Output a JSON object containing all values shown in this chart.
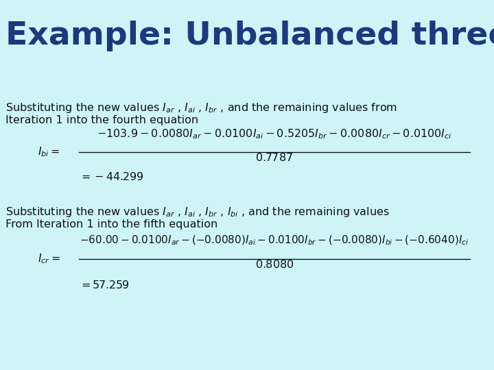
{
  "background_color": "#cef4f8",
  "title": "Example: Unbalanced three phase load",
  "title_color": "#1a3a7a",
  "title_fontsize": 34,
  "body_color": "#111111",
  "body_fontsize": 11.5,
  "eq_color": "#111111",
  "para1_line1": "Substituting the new values $I_{ar}$ , $I_{ai}$ , $I_{br}$ , and the remaining values from",
  "para1_line2": "Iteration 1 into the fourth equation",
  "eq1_lhs": "$I_{bi}=$",
  "eq1_num": "$-103.9-0.0080I_{ar}-0.0100I_{ai}-0.5205I_{br}-0.0080I_{cr}-0.0100I_{ci}$",
  "eq1_den": "$0.7787$",
  "eq1_result": "$=-44.299$",
  "para2_line1": "Substituting the new values $I_{ar}$ , $I_{ai}$ , $I_{br}$ , $I_{bi}$ , and the remaining values",
  "para2_line2": "From Iteration 1 into the fifth equation",
  "eq2_lhs": "$I_{cr}=$",
  "eq2_num": "$-60.00-0.0100I_{ar}-(-0.0080)I_{ai}-0.0100I_{br}-(-0.0080)I_{bi}-(-0.6040)I_{ci}$",
  "eq2_den": "$0.8080$",
  "eq2_result": "$=57.259$"
}
